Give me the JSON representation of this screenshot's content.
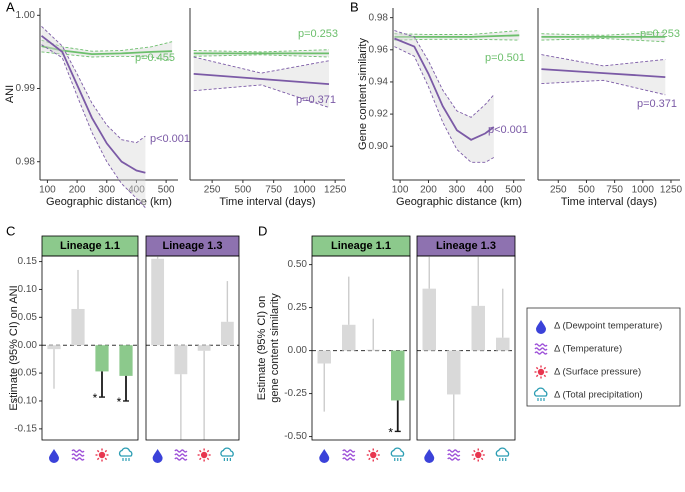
{
  "legend": {
    "items": [
      {
        "label": "Δ (Dewpoint temperature)",
        "color": "#3b42d9"
      },
      {
        "label": "Δ (Temperature)",
        "color": "#9d4fd8"
      },
      {
        "label": "Δ (Surface pressure)",
        "color": "#e8364f"
      },
      {
        "label": "Δ (Total precipitation)",
        "color": "#2b9db3"
      }
    ]
  },
  "chart_data": [
    {
      "type": "line",
      "panel_label": "A",
      "xlabel": "Geographic distance (km)",
      "ylabel": "ANI",
      "xlim": [
        75,
        540
      ],
      "ylim": [
        0.9775,
        1.001
      ],
      "xticks": [
        100,
        200,
        300,
        400,
        500
      ],
      "yticks": [
        0.98,
        0.99,
        {
          "value": 1,
          "label": "1.00"
        }
      ],
      "series": [
        {
          "color": "#6cbf6c",
          "annotation": "p=0.455",
          "x": [
            80,
            150,
            250,
            350,
            450,
            520
          ],
          "values": [
            0.9958,
            0.9952,
            0.9947,
            0.9948,
            0.995,
            0.9951
          ],
          "lower": [
            0.995,
            0.9947,
            0.9943,
            0.9944,
            0.9943,
            0.9938
          ],
          "upper": [
            0.9966,
            0.9957,
            0.9951,
            0.9952,
            0.9957,
            0.9964
          ]
        },
        {
          "color": "#7b5aa6",
          "annotation": "p<0.001",
          "x": [
            80,
            150,
            200,
            250,
            300,
            350,
            400,
            430
          ],
          "values": [
            0.9972,
            0.995,
            0.9905,
            0.986,
            0.9825,
            0.98,
            0.9788,
            0.9785
          ],
          "lower": [
            0.996,
            0.9942,
            0.989,
            0.984,
            0.98,
            0.977,
            0.975,
            0.9737
          ],
          "upper": [
            0.9985,
            0.9958,
            0.992,
            0.988,
            0.985,
            0.983,
            0.9826,
            0.9835
          ]
        }
      ]
    },
    {
      "type": "line",
      "xlabel": "Time interval (days)",
      "xlim": [
        70,
        1330
      ],
      "ylim": [
        0.9775,
        1.001
      ],
      "xticks": [
        250,
        500,
        750,
        1000,
        1250
      ],
      "series": [
        {
          "color": "#6cbf6c",
          "annotation": "p=0.253",
          "x": [
            100,
            650,
            1200
          ],
          "values": [
            0.9948,
            0.9948,
            0.9948
          ],
          "lower": [
            0.9944,
            0.9946,
            0.9943
          ],
          "upper": [
            0.9952,
            0.995,
            0.9953
          ]
        },
        {
          "color": "#7b5aa6",
          "annotation": "p=0.371",
          "x": [
            100,
            650,
            1200
          ],
          "values": [
            0.992,
            0.9913,
            0.9906
          ],
          "lower": [
            0.9897,
            0.9905,
            0.9874
          ],
          "upper": [
            0.9943,
            0.9921,
            0.9938
          ]
        }
      ]
    },
    {
      "type": "line",
      "panel_label": "B",
      "xlabel": "Geographic distance (km)",
      "ylabel": "Gene content similarity",
      "xlim": [
        75,
        540
      ],
      "ylim": [
        0.879,
        0.986
      ],
      "xticks": [
        100,
        200,
        300,
        400,
        500
      ],
      "yticks": [
        {
          "value": 0.9,
          "label": "0.90"
        },
        0.92,
        0.94,
        0.96,
        0.98
      ],
      "series": [
        {
          "color": "#6cbf6c",
          "annotation": "p=0.501",
          "x": [
            80,
            200,
            350,
            520
          ],
          "values": [
            0.968,
            0.968,
            0.968,
            0.969
          ],
          "lower": [
            0.966,
            0.9665,
            0.9665,
            0.966
          ],
          "upper": [
            0.97,
            0.9695,
            0.9695,
            0.972
          ]
        },
        {
          "color": "#7b5aa6",
          "annotation": "p<0.001",
          "x": [
            80,
            150,
            200,
            250,
            300,
            350,
            400,
            430
          ],
          "values": [
            0.967,
            0.962,
            0.945,
            0.925,
            0.91,
            0.904,
            0.908,
            0.912
          ],
          "lower": [
            0.962,
            0.956,
            0.937,
            0.915,
            0.898,
            0.89,
            0.89,
            0.893
          ],
          "upper": [
            0.972,
            0.968,
            0.953,
            0.935,
            0.922,
            0.918,
            0.926,
            0.932
          ]
        }
      ]
    },
    {
      "type": "line",
      "xlabel": "Time interval (days)",
      "xlim": [
        70,
        1330
      ],
      "ylim": [
        0.879,
        0.986
      ],
      "xticks": [
        250,
        500,
        750,
        1000,
        1250
      ],
      "series": [
        {
          "color": "#6cbf6c",
          "annotation": "p=0.253",
          "x": [
            100,
            650,
            1200
          ],
          "values": [
            0.968,
            0.968,
            0.968
          ],
          "lower": [
            0.966,
            0.967,
            0.965
          ],
          "upper": [
            0.97,
            0.969,
            0.971
          ]
        },
        {
          "color": "#7b5aa6",
          "annotation": "p=0.371",
          "x": [
            100,
            650,
            1200
          ],
          "values": [
            0.948,
            0.9455,
            0.943
          ],
          "lower": [
            0.939,
            0.941,
            0.932
          ],
          "upper": [
            0.957,
            0.95,
            0.954
          ]
        }
      ]
    },
    {
      "type": "bar",
      "panel_label": "C",
      "ylabel": [
        "Estimate (95% CI) on ANI"
      ],
      "ylim": [
        -0.17,
        0.16
      ],
      "yticks": [
        -0.15,
        {
          "value": -0.1,
          "label": "-0.10"
        },
        -0.05,
        {
          "value": 0,
          "label": "0.00"
        },
        0.05,
        {
          "value": 0.1,
          "label": "0.10"
        },
        0.15
      ],
      "color": "#d9d9d9",
      "highlight_color": "#8cc98c",
      "significance_marker": "*",
      "facets": [
        {
          "title": "Lineage 1.1",
          "color": "#8cc98c",
          "values": [
            -0.007,
            0.065,
            -0.047,
            -0.055
          ],
          "ci": [
            -0.078,
            0.135,
            -0.093,
            -0.1
          ],
          "significant": [
            false,
            false,
            true,
            true
          ]
        },
        {
          "title": "Lineage 1.3",
          "color": "#8e72b0",
          "values": [
            0.155,
            -0.052,
            -0.01,
            0.042
          ],
          "ci": [
            0.2,
            -0.2,
            -0.2,
            0.115
          ],
          "significant": [
            false,
            false,
            false,
            false
          ]
        }
      ]
    },
    {
      "type": "bar",
      "panel_label": "D",
      "ylabel": [
        "Estimate (95% CI) on",
        "gene content similarity"
      ],
      "ylim": [
        -0.52,
        0.55
      ],
      "yticks": [
        {
          "value": -0.5,
          "label": "-0.50"
        },
        -0.25,
        {
          "value": 0,
          "label": "0.00"
        },
        0.25,
        {
          "value": 0.5,
          "label": "0.50"
        }
      ],
      "color": "#d9d9d9",
      "highlight_color": "#8cc98c",
      "significance_marker": "*",
      "facets": [
        {
          "title": "Lineage 1.1",
          "color": "#8cc98c",
          "values": [
            -0.075,
            0.15,
            0.005,
            -0.29
          ],
          "ci": [
            -0.355,
            0.43,
            0.185,
            -0.47
          ],
          "significant": [
            false,
            false,
            false,
            true
          ]
        },
        {
          "title": "Lineage 1.3",
          "color": "#8e72b0",
          "values": [
            0.36,
            -0.255,
            0.26,
            0.075
          ],
          "ci": [
            0.6,
            -0.6,
            0.6,
            0.36
          ],
          "significant": [
            false,
            false,
            false,
            false
          ]
        }
      ]
    }
  ]
}
